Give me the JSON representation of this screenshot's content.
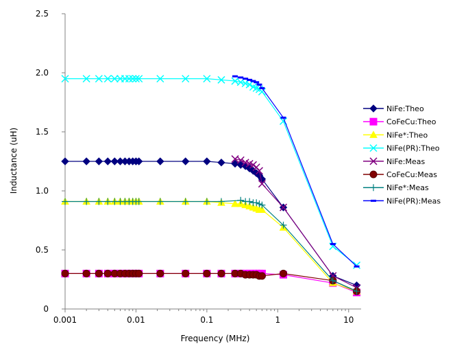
{
  "chart_data": {
    "type": "line",
    "title": "",
    "xlabel": "Frequency (MHz)",
    "ylabel": "Inductance (uH)",
    "x_scale": "log",
    "xlim": [
      0.001,
      15
    ],
    "ylim": [
      0,
      2.5
    ],
    "x_ticks": [
      0.001,
      0.01,
      0.1,
      1,
      10
    ],
    "x_tick_labels": [
      "0.001",
      "0.01",
      "0.1",
      "1",
      "10"
    ],
    "y_ticks": [
      0,
      0.5,
      1.0,
      1.5,
      2.0,
      2.5
    ],
    "y_tick_labels": [
      "0",
      "0.5",
      "1.0",
      "1.5",
      "2.0",
      "2.5"
    ],
    "grid": false,
    "legend_position": "right",
    "series": [
      {
        "name": "NiFe:Theo",
        "color": "#000080",
        "marker": "diamond",
        "x": [
          0.001,
          0.002,
          0.003,
          0.004,
          0.005,
          0.006,
          0.007,
          0.008,
          0.009,
          0.01,
          0.011,
          0.022,
          0.05,
          0.1,
          0.16,
          0.25,
          0.3,
          0.35,
          0.4,
          0.45,
          0.5,
          0.55,
          0.6,
          1.2,
          6,
          13
        ],
        "y": [
          1.25,
          1.25,
          1.25,
          1.25,
          1.25,
          1.25,
          1.25,
          1.25,
          1.25,
          1.25,
          1.25,
          1.25,
          1.25,
          1.25,
          1.24,
          1.23,
          1.22,
          1.21,
          1.19,
          1.17,
          1.15,
          1.13,
          1.1,
          0.86,
          0.28,
          0.2
        ]
      },
      {
        "name": "CoFeCu:Theo",
        "color": "#ff00ff",
        "marker": "square",
        "x": [
          0.001,
          0.002,
          0.003,
          0.004,
          0.005,
          0.006,
          0.007,
          0.008,
          0.009,
          0.01,
          0.011,
          0.022,
          0.05,
          0.1,
          0.16,
          0.25,
          0.3,
          0.35,
          0.4,
          0.45,
          0.5,
          0.55,
          0.6,
          1.2,
          6,
          13
        ],
        "y": [
          0.3,
          0.3,
          0.3,
          0.3,
          0.3,
          0.3,
          0.3,
          0.3,
          0.3,
          0.3,
          0.3,
          0.3,
          0.3,
          0.3,
          0.3,
          0.3,
          0.3,
          0.3,
          0.3,
          0.3,
          0.3,
          0.3,
          0.3,
          0.29,
          0.22,
          0.14
        ]
      },
      {
        "name": "NiFe*:Theo",
        "color": "#ffff00",
        "marker": "triangle",
        "x": [
          0.001,
          0.002,
          0.003,
          0.004,
          0.005,
          0.006,
          0.007,
          0.008,
          0.009,
          0.01,
          0.011,
          0.022,
          0.05,
          0.1,
          0.16,
          0.25,
          0.3,
          0.35,
          0.4,
          0.45,
          0.5,
          0.55,
          0.6,
          1.2,
          6,
          13
        ],
        "y": [
          0.91,
          0.91,
          0.91,
          0.91,
          0.91,
          0.91,
          0.91,
          0.91,
          0.91,
          0.91,
          0.91,
          0.91,
          0.91,
          0.91,
          0.9,
          0.89,
          0.89,
          0.88,
          0.87,
          0.86,
          0.85,
          0.84,
          0.84,
          0.69,
          0.22,
          0.15
        ]
      },
      {
        "name": "NiFe(PR):Theo",
        "color": "#00ffff",
        "marker": "x",
        "x": [
          0.001,
          0.002,
          0.003,
          0.004,
          0.005,
          0.006,
          0.007,
          0.008,
          0.009,
          0.01,
          0.011,
          0.022,
          0.05,
          0.1,
          0.16,
          0.25,
          0.3,
          0.35,
          0.4,
          0.45,
          0.5,
          0.55,
          0.6,
          1.2,
          6,
          13
        ],
        "y": [
          1.95,
          1.95,
          1.95,
          1.95,
          1.95,
          1.95,
          1.95,
          1.95,
          1.95,
          1.95,
          1.95,
          1.95,
          1.95,
          1.95,
          1.94,
          1.93,
          1.92,
          1.91,
          1.9,
          1.88,
          1.87,
          1.86,
          1.84,
          1.59,
          0.53,
          0.37
        ]
      },
      {
        "name": "NiFe:Meas",
        "color": "#800080",
        "marker": "x",
        "x": [
          0.25,
          0.3,
          0.35,
          0.4,
          0.45,
          0.5,
          0.55,
          0.6,
          1.2,
          6,
          13
        ],
        "y": [
          1.27,
          1.26,
          1.24,
          1.23,
          1.22,
          1.2,
          1.17,
          1.06,
          0.86,
          0.28,
          0.18
        ]
      },
      {
        "name": "CoFeCu:Meas",
        "color": "#800000",
        "marker": "circle",
        "x": [
          0.001,
          0.002,
          0.003,
          0.004,
          0.005,
          0.006,
          0.007,
          0.008,
          0.009,
          0.01,
          0.011,
          0.022,
          0.05,
          0.1,
          0.16,
          0.25,
          0.3,
          0.35,
          0.4,
          0.45,
          0.5,
          0.55,
          0.6,
          1.2,
          6,
          13
        ],
        "y": [
          0.3,
          0.3,
          0.3,
          0.3,
          0.3,
          0.3,
          0.3,
          0.3,
          0.3,
          0.3,
          0.3,
          0.3,
          0.3,
          0.3,
          0.3,
          0.3,
          0.3,
          0.29,
          0.29,
          0.29,
          0.29,
          0.28,
          0.28,
          0.3,
          0.24,
          0.15
        ]
      },
      {
        "name": "NiFe*:Meas",
        "color": "#008080",
        "marker": "plus",
        "x": [
          0.001,
          0.002,
          0.003,
          0.004,
          0.005,
          0.006,
          0.007,
          0.008,
          0.009,
          0.01,
          0.011,
          0.022,
          0.05,
          0.1,
          0.16,
          0.3,
          0.35,
          0.4,
          0.45,
          0.5,
          0.55,
          0.6,
          1.2,
          6,
          13
        ],
        "y": [
          0.91,
          0.91,
          0.91,
          0.91,
          0.91,
          0.91,
          0.91,
          0.91,
          0.91,
          0.91,
          0.91,
          0.91,
          0.91,
          0.91,
          0.91,
          0.92,
          0.91,
          0.91,
          0.9,
          0.9,
          0.89,
          0.88,
          0.71,
          0.24,
          0.15
        ]
      },
      {
        "name": "NiFe(PR):Meas",
        "color": "#0000ff",
        "marker": "dash",
        "x": [
          0.25,
          0.3,
          0.35,
          0.4,
          0.45,
          0.5,
          0.55,
          0.6,
          1.2,
          6,
          13
        ],
        "y": [
          1.97,
          1.96,
          1.95,
          1.94,
          1.93,
          1.92,
          1.9,
          1.87,
          1.62,
          0.55,
          0.36
        ]
      }
    ]
  }
}
